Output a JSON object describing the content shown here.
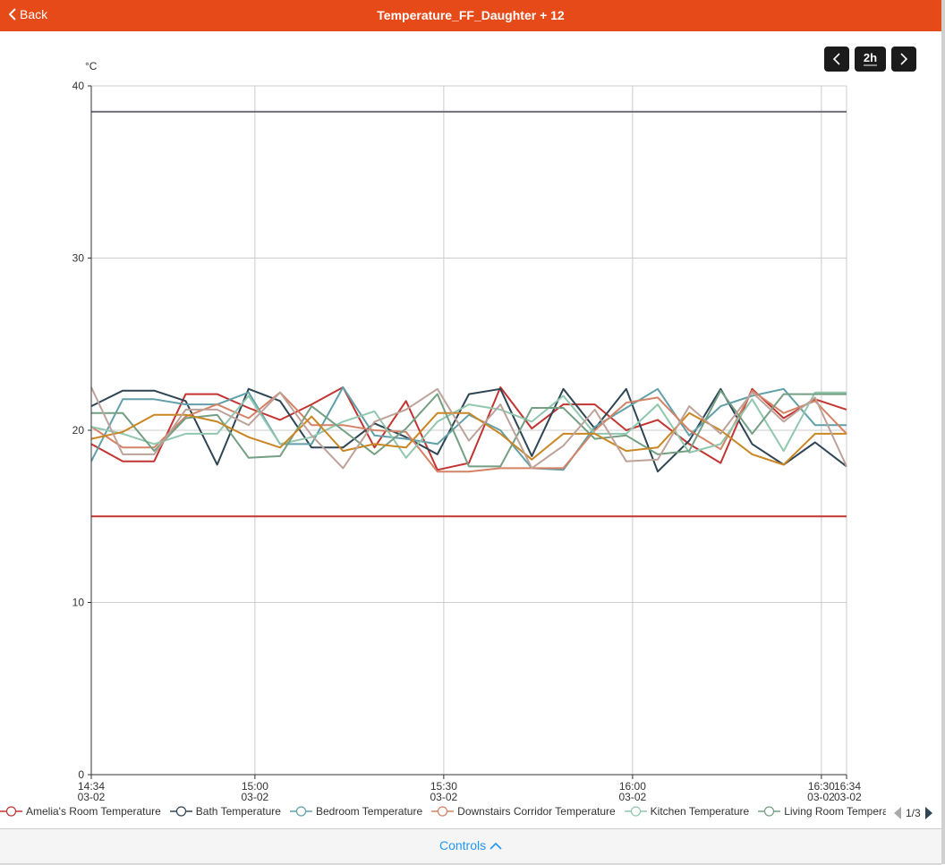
{
  "header": {
    "back_label": "Back",
    "title": "Temperature_FF_Daughter + 12",
    "color": "#e64a19"
  },
  "nav": {
    "prev_icon": "chevron-left-icon",
    "range_label": "2h",
    "next_icon": "chevron-right-icon"
  },
  "legend": {
    "page": "1/3"
  },
  "controls": {
    "label": "Controls"
  },
  "chart_data": {
    "type": "line",
    "ylabel": "°C",
    "ylim": [
      0,
      40
    ],
    "yticks": [
      "0",
      "10",
      "20",
      "30",
      "40"
    ],
    "xticks": [
      {
        "time": "14:34",
        "date": "03-02"
      },
      {
        "time": "15:00",
        "date": "03-02"
      },
      {
        "time": "15:30",
        "date": "03-02"
      },
      {
        "time": "16:00",
        "date": "03-02"
      },
      {
        "time": "16:30",
        "date": "03-02"
      },
      {
        "time": "16:34",
        "date": "03-02"
      }
    ],
    "x_start": "14:34",
    "x_end": "16:34",
    "x_step_minutes": 5,
    "grid": true,
    "legend_placement": "bottom",
    "series": [
      {
        "name": "Amelia's Room Temperature",
        "color": "#c23531",
        "values": [
          19.2,
          18.2,
          18.2,
          22.1,
          22.1,
          21.3,
          20.6,
          21.5,
          22.5,
          19.0,
          21.7,
          17.7,
          18.1,
          22.5,
          20.1,
          21.5,
          21.5,
          20.0,
          20.6,
          19.2,
          18.1,
          22.4,
          20.7,
          21.8,
          21.2
        ]
      },
      {
        "name": "Bath Temperature",
        "color": "#2f4554",
        "values": [
          21.4,
          22.3,
          22.3,
          21.7,
          18.0,
          22.4,
          21.7,
          19.0,
          19.0,
          20.4,
          19.6,
          18.6,
          22.1,
          22.4,
          18.5,
          22.4,
          20.1,
          22.4,
          17.6,
          19.4,
          22.4,
          19.2,
          18.0,
          19.3,
          17.9
        ]
      },
      {
        "name": "Bedroom Temperature",
        "color": "#61a0a8",
        "values": [
          18.2,
          21.8,
          21.8,
          21.5,
          21.5,
          22.2,
          19.2,
          19.2,
          22.5,
          19.7,
          19.5,
          19.2,
          20.9,
          20.0,
          17.8,
          17.7,
          20.2,
          21.3,
          22.4,
          19.7,
          21.4,
          22.0,
          22.4,
          20.3,
          20.3
        ]
      },
      {
        "name": "Downstairs Corridor Temperature",
        "color": "#d48265",
        "values": [
          20.2,
          19.0,
          19.0,
          20.8,
          21.5,
          20.7,
          22.2,
          20.3,
          20.3,
          20.0,
          19.9,
          17.6,
          17.6,
          17.8,
          17.8,
          17.8,
          20.0,
          21.6,
          21.9,
          20.0,
          18.9,
          22.3,
          21.0,
          21.7,
          19.8
        ]
      },
      {
        "name": "Kitchen Temperature",
        "color": "#91c7ae",
        "values": [
          20.2,
          19.8,
          19.2,
          19.8,
          19.8,
          22.0,
          19.2,
          19.6,
          20.5,
          21.1,
          18.4,
          20.5,
          21.5,
          21.2,
          20.5,
          22.0,
          19.8,
          19.8,
          21.5,
          18.7,
          19.2,
          21.8,
          18.8,
          22.2,
          22.2
        ]
      },
      {
        "name": "Living Room Temperature",
        "color": "#749f83",
        "values": [
          21.0,
          21.0,
          18.8,
          20.7,
          20.9,
          18.4,
          18.5,
          21.4,
          20.0,
          18.6,
          20.1,
          22.1,
          17.9,
          17.9,
          21.3,
          21.3,
          19.5,
          19.7,
          18.6,
          18.8,
          22.3,
          19.8,
          22.1,
          22.1,
          22.1
        ]
      },
      {
        "color": "#ca8622",
        "values": [
          19.5,
          19.9,
          20.9,
          20.9,
          20.5,
          19.6,
          19.0,
          20.8,
          18.8,
          19.2,
          19.0,
          21.0,
          21.0,
          19.8,
          18.3,
          19.8,
          19.8,
          18.8,
          19.0,
          21.0,
          20.0,
          18.6,
          18.0,
          19.8,
          19.8
        ]
      },
      {
        "color": "#bda29a",
        "values": [
          22.5,
          18.6,
          18.6,
          21.2,
          21.2,
          20.3,
          22.2,
          19.7,
          17.8,
          20.5,
          21.2,
          22.4,
          19.4,
          21.5,
          17.8,
          19.1,
          21.2,
          18.2,
          18.3,
          21.4,
          19.8,
          22.2,
          20.5,
          21.9,
          17.9
        ]
      },
      {
        "color": "#6e7074",
        "values": [
          38.5,
          38.5,
          38.5,
          38.5,
          38.5,
          38.5,
          38.5,
          38.5,
          38.5,
          38.5,
          38.5,
          38.5,
          38.5,
          38.5,
          38.5,
          38.5,
          38.5,
          38.5,
          38.5,
          38.5,
          38.5,
          38.5,
          38.5,
          38.5,
          38.5
        ]
      },
      {
        "color": "#c23531",
        "values": [
          15,
          15,
          15,
          15,
          15,
          15,
          15,
          15,
          15,
          15,
          15,
          15,
          15,
          15,
          15,
          15,
          15,
          15,
          15,
          15,
          15,
          15,
          15,
          15,
          15
        ]
      }
    ]
  }
}
